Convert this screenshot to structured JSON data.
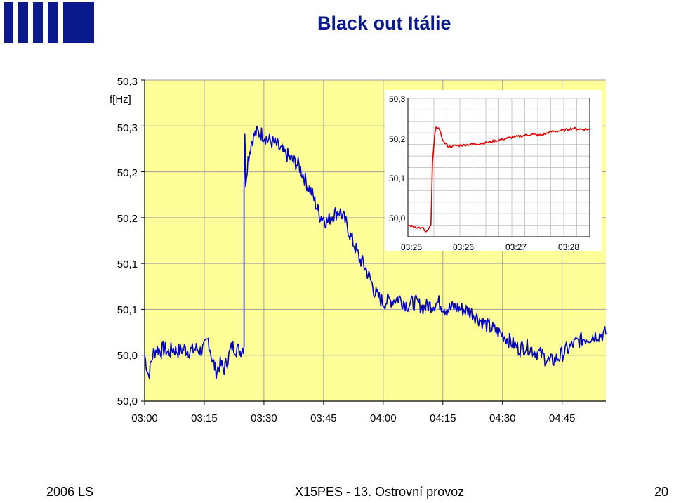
{
  "slide": {
    "title": "Black out Itálie",
    "footer_left": "2006 LS",
    "footer_center": "X15PES - 13. Ostrovní provoz",
    "footer_right": "20"
  },
  "colors": {
    "brand": "#0a1a8c",
    "plot_bg": "#ffff99",
    "main_series": "#0000cc",
    "inset_series": "#e00000"
  },
  "chart_data": [
    {
      "type": "line",
      "title": "",
      "xlabel": "",
      "ylabel": "f[Hz]",
      "x_ticks": [
        "03:00",
        "03:15",
        "03:30",
        "03:45",
        "04:00",
        "04:15",
        "04:30",
        "04:45"
      ],
      "y_ticks": [
        "50,0",
        "50,0",
        "50,1",
        "50,1",
        "50,2",
        "50,2",
        "50,3",
        "50,3"
      ],
      "x_range": [
        "03:00",
        "04:56"
      ],
      "y_range": [
        0,
        7
      ],
      "grid": true,
      "series": [
        {
          "color": "#0000cc",
          "points": [
            [
              "03:00",
              1.0
            ],
            [
              "03:01",
              0.55
            ],
            [
              "03:02",
              1.0
            ],
            [
              "03:03",
              1.15
            ],
            [
              "03:04",
              1.1
            ],
            [
              "03:05",
              1.15
            ],
            [
              "03:06",
              1.05
            ],
            [
              "03:07",
              1.15
            ],
            [
              "03:08",
              1.1
            ],
            [
              "03:09",
              1.1
            ],
            [
              "03:10",
              1.15
            ],
            [
              "03:11",
              1.1
            ],
            [
              "03:12",
              1.1
            ],
            [
              "03:13",
              1.15
            ],
            [
              "03:14",
              1.1
            ],
            [
              "03:15",
              1.15
            ],
            [
              "03:16",
              1.35
            ],
            [
              "03:17",
              0.9
            ],
            [
              "03:18",
              0.65
            ],
            [
              "03:19",
              0.8
            ],
            [
              "03:20",
              0.7
            ],
            [
              "03:21",
              0.95
            ],
            [
              "03:22",
              1.2
            ],
            [
              "03:23",
              1.15
            ],
            [
              "03:24",
              1.1
            ],
            [
              "03:25",
              1.2
            ],
            [
              "03:25",
              4.7
            ],
            [
              "03:25.2",
              5.9
            ],
            [
              "03:25.4",
              4.8
            ],
            [
              "03:26",
              5.3
            ],
            [
              "03:27",
              5.7
            ],
            [
              "03:28",
              5.85
            ],
            [
              "03:29",
              5.85
            ],
            [
              "03:30",
              5.8
            ],
            [
              "03:31",
              5.7
            ],
            [
              "03:32",
              5.65
            ],
            [
              "03:33",
              5.6
            ],
            [
              "03:34",
              5.5
            ],
            [
              "03:35",
              5.4
            ],
            [
              "03:36",
              5.35
            ],
            [
              "03:37",
              5.25
            ],
            [
              "03:38",
              5.2
            ],
            [
              "03:39",
              5.1
            ],
            [
              "03:40",
              4.9
            ],
            [
              "03:41",
              4.7
            ],
            [
              "03:42",
              4.55
            ],
            [
              "03:43",
              4.3
            ],
            [
              "03:44",
              4.05
            ],
            [
              "03:45",
              4.0
            ],
            [
              "03:46",
              3.9
            ],
            [
              "03:47",
              4.05
            ],
            [
              "03:48",
              4.1
            ],
            [
              "03:49",
              4.15
            ],
            [
              "03:50",
              4.0
            ],
            [
              "03:51",
              3.8
            ],
            [
              "03:52",
              3.55
            ],
            [
              "03:53",
              3.35
            ],
            [
              "03:54",
              3.1
            ],
            [
              "03:55",
              3.0
            ],
            [
              "03:56",
              2.8
            ],
            [
              "03:57",
              2.6
            ],
            [
              "03:58",
              2.35
            ],
            [
              "03:59",
              2.25
            ],
            [
              "04:00",
              2.15
            ],
            [
              "04:02",
              2.2
            ],
            [
              "04:04",
              2.25
            ],
            [
              "04:06",
              2.1
            ],
            [
              "04:08",
              2.15
            ],
            [
              "04:10",
              2.05
            ],
            [
              "04:12",
              2.1
            ],
            [
              "04:14",
              2.15
            ],
            [
              "04:16",
              2.0
            ],
            [
              "04:18",
              2.05
            ],
            [
              "04:20",
              2.0
            ],
            [
              "04:22",
              1.95
            ],
            [
              "04:24",
              1.8
            ],
            [
              "04:26",
              1.65
            ],
            [
              "04:28",
              1.55
            ],
            [
              "04:30",
              1.45
            ],
            [
              "04:32",
              1.3
            ],
            [
              "04:34",
              1.15
            ],
            [
              "04:36",
              1.2
            ],
            [
              "04:38",
              1.1
            ],
            [
              "04:40",
              1.0
            ],
            [
              "04:42",
              0.85
            ],
            [
              "04:44",
              0.95
            ],
            [
              "04:46",
              1.1
            ],
            [
              "04:48",
              1.25
            ],
            [
              "04:50",
              1.35
            ],
            [
              "04:52",
              1.4
            ],
            [
              "04:54",
              1.45
            ],
            [
              "04:56",
              1.45
            ]
          ]
        }
      ]
    },
    {
      "type": "line",
      "title": "",
      "x_ticks": [
        "03:25",
        "03:26",
        "03:27",
        "03:28"
      ],
      "y_ticks": [
        "50,3",
        "50,2",
        "50,1",
        "50,0"
      ],
      "x_range": [
        0,
        3.55
      ],
      "y_range": [
        0,
        3
      ],
      "grid": true,
      "series": [
        {
          "color": "#e00000",
          "points": [
            [
              0.0,
              0.25
            ],
            [
              0.1,
              0.22
            ],
            [
              0.2,
              0.2
            ],
            [
              0.3,
              0.18
            ],
            [
              0.35,
              0.1
            ],
            [
              0.4,
              0.15
            ],
            [
              0.45,
              0.25
            ],
            [
              0.48,
              1.6
            ],
            [
              0.52,
              2.15
            ],
            [
              0.55,
              2.4
            ],
            [
              0.6,
              2.35
            ],
            [
              0.7,
              2.05
            ],
            [
              0.8,
              1.95
            ],
            [
              0.9,
              1.97
            ],
            [
              1.0,
              1.98
            ],
            [
              1.2,
              2.0
            ],
            [
              1.4,
              2.02
            ],
            [
              1.6,
              2.05
            ],
            [
              1.8,
              2.1
            ],
            [
              2.0,
              2.15
            ],
            [
              2.2,
              2.18
            ],
            [
              2.4,
              2.22
            ],
            [
              2.6,
              2.2
            ],
            [
              2.8,
              2.28
            ],
            [
              3.0,
              2.3
            ],
            [
              3.2,
              2.35
            ],
            [
              3.4,
              2.33
            ],
            [
              3.55,
              2.33
            ]
          ]
        }
      ]
    }
  ]
}
